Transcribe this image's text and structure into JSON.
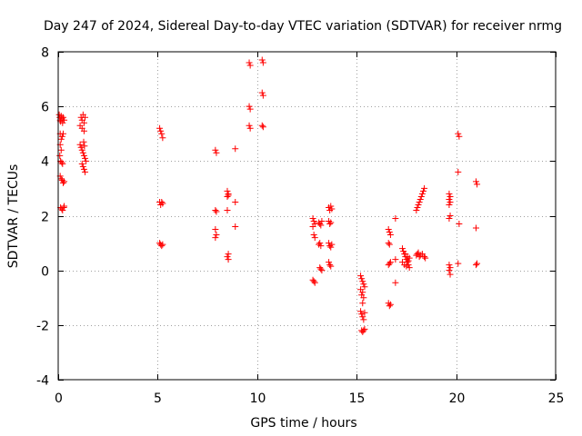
{
  "chart_data": {
    "type": "scatter",
    "title": "Day 247 of 2024, Sidereal Day-to-day VTEC variation (SDTVAR) for receiver nrmg",
    "xlabel": "GPS time / hours",
    "ylabel": "SDTVAR / TECUs",
    "xlim": [
      0,
      25
    ],
    "ylim": [
      -4,
      8
    ],
    "xticks": [
      "0",
      "5",
      "10",
      "15",
      "20",
      "25"
    ],
    "yticks": [
      "-4",
      "-2",
      "0",
      "2",
      "4",
      "6",
      "8"
    ],
    "grid": true,
    "marker": "plus",
    "color": "#ff0000",
    "series": [
      {
        "name": "SDTVAR",
        "points": [
          [
            0.05,
            5.7
          ],
          [
            0.08,
            5.6
          ],
          [
            0.1,
            5.5
          ],
          [
            0.12,
            5.45
          ],
          [
            0.15,
            5.65
          ],
          [
            0.18,
            5.55
          ],
          [
            0.22,
            5.4
          ],
          [
            0.25,
            5.6
          ],
          [
            0.3,
            5.5
          ],
          [
            0.1,
            5.0
          ],
          [
            0.15,
            4.8
          ],
          [
            0.2,
            4.9
          ],
          [
            0.25,
            5.0
          ],
          [
            0.1,
            4.6
          ],
          [
            0.15,
            4.4
          ],
          [
            0.08,
            4.2
          ],
          [
            0.12,
            4.0
          ],
          [
            0.18,
            3.95
          ],
          [
            0.22,
            3.9
          ],
          [
            0.1,
            3.45
          ],
          [
            0.15,
            3.35
          ],
          [
            0.2,
            3.3
          ],
          [
            0.25,
            3.2
          ],
          [
            0.3,
            3.25
          ],
          [
            0.12,
            2.3
          ],
          [
            0.18,
            2.25
          ],
          [
            0.22,
            2.2
          ],
          [
            0.28,
            2.3
          ],
          [
            0.3,
            2.35
          ],
          [
            1.15,
            5.6
          ],
          [
            1.2,
            5.5
          ],
          [
            1.25,
            5.7
          ],
          [
            1.3,
            5.4
          ],
          [
            1.35,
            5.6
          ],
          [
            1.1,
            5.3
          ],
          [
            1.2,
            5.2
          ],
          [
            1.3,
            5.1
          ],
          [
            1.1,
            4.6
          ],
          [
            1.15,
            4.5
          ],
          [
            1.2,
            4.4
          ],
          [
            1.25,
            4.3
          ],
          [
            1.3,
            4.2
          ],
          [
            1.35,
            4.1
          ],
          [
            1.4,
            4.0
          ],
          [
            1.2,
            3.9
          ],
          [
            1.25,
            3.8
          ],
          [
            1.3,
            3.7
          ],
          [
            1.35,
            3.6
          ],
          [
            1.28,
            4.7
          ],
          [
            1.32,
            4.55
          ],
          [
            5.1,
            5.2
          ],
          [
            5.15,
            5.1
          ],
          [
            5.2,
            5.0
          ],
          [
            5.25,
            4.85
          ],
          [
            5.1,
            2.5
          ],
          [
            5.15,
            2.4
          ],
          [
            5.2,
            2.5
          ],
          [
            5.25,
            2.45
          ],
          [
            5.1,
            1.0
          ],
          [
            5.15,
            0.95
          ],
          [
            5.2,
            0.9
          ],
          [
            5.25,
            0.95
          ],
          [
            7.9,
            4.4
          ],
          [
            7.95,
            4.3
          ],
          [
            7.9,
            2.2
          ],
          [
            7.95,
            2.15
          ],
          [
            7.9,
            1.5
          ],
          [
            7.95,
            1.3
          ],
          [
            7.9,
            1.2
          ],
          [
            8.5,
            2.9
          ],
          [
            8.55,
            2.8
          ],
          [
            8.5,
            2.7
          ],
          [
            8.55,
            2.75
          ],
          [
            8.5,
            2.2
          ],
          [
            8.55,
            0.6
          ],
          [
            8.5,
            0.5
          ],
          [
            8.55,
            0.4
          ],
          [
            8.9,
            4.45
          ],
          [
            8.9,
            2.5
          ],
          [
            8.9,
            1.6
          ],
          [
            9.6,
            7.6
          ],
          [
            9.65,
            7.5
          ],
          [
            9.6,
            6.0
          ],
          [
            9.65,
            5.9
          ],
          [
            9.6,
            5.3
          ],
          [
            9.65,
            5.2
          ],
          [
            10.25,
            7.7
          ],
          [
            10.3,
            7.6
          ],
          [
            10.25,
            6.5
          ],
          [
            10.3,
            6.4
          ],
          [
            10.25,
            5.3
          ],
          [
            10.3,
            5.25
          ],
          [
            12.8,
            1.9
          ],
          [
            12.85,
            1.8
          ],
          [
            12.9,
            1.7
          ],
          [
            12.8,
            1.6
          ],
          [
            12.85,
            1.3
          ],
          [
            12.9,
            1.2
          ],
          [
            12.8,
            -0.35
          ],
          [
            12.85,
            -0.4
          ],
          [
            12.9,
            -0.45
          ],
          [
            13.1,
            1.75
          ],
          [
            13.15,
            1.7
          ],
          [
            13.2,
            1.65
          ],
          [
            13.25,
            1.8
          ],
          [
            13.15,
            1.0
          ],
          [
            13.2,
            0.9
          ],
          [
            13.1,
            0.95
          ],
          [
            13.15,
            0.1
          ],
          [
            13.2,
            0.05
          ],
          [
            13.25,
            0.0
          ],
          [
            13.6,
            2.3
          ],
          [
            13.65,
            2.2
          ],
          [
            13.7,
            2.35
          ],
          [
            13.75,
            2.25
          ],
          [
            13.6,
            1.8
          ],
          [
            13.65,
            1.7
          ],
          [
            13.7,
            1.75
          ],
          [
            13.6,
            1.0
          ],
          [
            13.65,
            0.9
          ],
          [
            13.7,
            0.85
          ],
          [
            13.75,
            0.95
          ],
          [
            13.6,
            0.3
          ],
          [
            13.65,
            0.2
          ],
          [
            13.7,
            0.15
          ],
          [
            15.2,
            -0.2
          ],
          [
            15.25,
            -0.3
          ],
          [
            15.3,
            -0.4
          ],
          [
            15.35,
            -0.5
          ],
          [
            15.4,
            -0.6
          ],
          [
            15.2,
            -0.7
          ],
          [
            15.3,
            -0.8
          ],
          [
            15.25,
            -0.9
          ],
          [
            15.35,
            -1.0
          ],
          [
            15.3,
            -1.2
          ],
          [
            15.2,
            -1.5
          ],
          [
            15.25,
            -1.6
          ],
          [
            15.3,
            -1.7
          ],
          [
            15.35,
            -1.8
          ],
          [
            15.4,
            -1.55
          ],
          [
            15.25,
            -2.2
          ],
          [
            15.3,
            -2.25
          ],
          [
            15.35,
            -2.2
          ],
          [
            15.4,
            -2.15
          ],
          [
            16.6,
            1.5
          ],
          [
            16.65,
            1.4
          ],
          [
            16.7,
            1.3
          ],
          [
            16.6,
            1.0
          ],
          [
            16.65,
            0.95
          ],
          [
            16.6,
            0.2
          ],
          [
            16.65,
            0.25
          ],
          [
            16.7,
            0.3
          ],
          [
            16.6,
            -1.2
          ],
          [
            16.65,
            -1.3
          ],
          [
            16.7,
            -1.25
          ],
          [
            16.95,
            1.9
          ],
          [
            16.95,
            0.4
          ],
          [
            16.95,
            -0.45
          ],
          [
            17.3,
            0.8
          ],
          [
            17.35,
            0.7
          ],
          [
            17.4,
            0.6
          ],
          [
            17.45,
            0.5
          ],
          [
            17.5,
            0.4
          ],
          [
            17.55,
            0.3
          ],
          [
            17.6,
            0.2
          ],
          [
            17.65,
            0.1
          ],
          [
            17.3,
            0.3
          ],
          [
            17.4,
            0.2
          ],
          [
            17.5,
            0.15
          ],
          [
            17.6,
            0.35
          ],
          [
            17.45,
            0.6
          ],
          [
            17.55,
            0.5
          ],
          [
            17.65,
            0.45
          ],
          [
            18.0,
            2.2
          ],
          [
            18.05,
            2.3
          ],
          [
            18.1,
            2.4
          ],
          [
            18.15,
            2.5
          ],
          [
            18.2,
            2.6
          ],
          [
            18.25,
            2.7
          ],
          [
            18.3,
            2.8
          ],
          [
            18.35,
            2.9
          ],
          [
            18.4,
            3.0
          ],
          [
            18.0,
            0.55
          ],
          [
            18.05,
            0.6
          ],
          [
            18.1,
            0.65
          ],
          [
            18.15,
            0.5
          ],
          [
            18.2,
            0.55
          ],
          [
            18.3,
            0.6
          ],
          [
            18.4,
            0.5
          ],
          [
            18.45,
            0.45
          ],
          [
            19.65,
            2.8
          ],
          [
            19.7,
            2.7
          ],
          [
            19.65,
            2.6
          ],
          [
            19.7,
            2.5
          ],
          [
            19.65,
            2.4
          ],
          [
            19.7,
            2.0
          ],
          [
            19.65,
            1.9
          ],
          [
            19.65,
            0.2
          ],
          [
            19.7,
            0.1
          ],
          [
            19.65,
            0.0
          ],
          [
            19.7,
            -0.15
          ],
          [
            20.1,
            5.0
          ],
          [
            20.15,
            4.9
          ],
          [
            20.1,
            3.6
          ],
          [
            20.15,
            1.7
          ],
          [
            20.1,
            0.25
          ],
          [
            21.0,
            3.25
          ],
          [
            21.05,
            3.15
          ],
          [
            21.0,
            1.55
          ],
          [
            21.05,
            0.25
          ],
          [
            21.0,
            0.2
          ]
        ]
      }
    ]
  }
}
